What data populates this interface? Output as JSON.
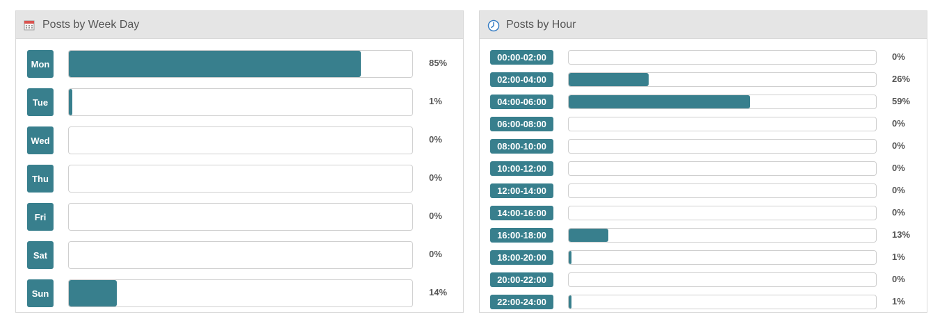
{
  "week_panel": {
    "title": "Posts by Week Day",
    "icon": "calendar-icon",
    "items": [
      {
        "label": "Mon",
        "value": 85,
        "text": "85%"
      },
      {
        "label": "Tue",
        "value": 1,
        "text": "1%"
      },
      {
        "label": "Wed",
        "value": 0,
        "text": "0%"
      },
      {
        "label": "Thu",
        "value": 0,
        "text": "0%"
      },
      {
        "label": "Fri",
        "value": 0,
        "text": "0%"
      },
      {
        "label": "Sat",
        "value": 0,
        "text": "0%"
      },
      {
        "label": "Sun",
        "value": 14,
        "text": "14%"
      }
    ]
  },
  "hour_panel": {
    "title": "Posts by Hour",
    "icon": "clock-icon",
    "items": [
      {
        "label": "00:00-02:00",
        "value": 0,
        "text": "0%"
      },
      {
        "label": "02:00-04:00",
        "value": 26,
        "text": "26%"
      },
      {
        "label": "04:00-06:00",
        "value": 59,
        "text": "59%"
      },
      {
        "label": "06:00-08:00",
        "value": 0,
        "text": "0%"
      },
      {
        "label": "08:00-10:00",
        "value": 0,
        "text": "0%"
      },
      {
        "label": "10:00-12:00",
        "value": 0,
        "text": "0%"
      },
      {
        "label": "12:00-14:00",
        "value": 0,
        "text": "0%"
      },
      {
        "label": "14:00-16:00",
        "value": 0,
        "text": "0%"
      },
      {
        "label": "16:00-18:00",
        "value": 13,
        "text": "13%"
      },
      {
        "label": "18:00-20:00",
        "value": 1,
        "text": "1%"
      },
      {
        "label": "20:00-22:00",
        "value": 0,
        "text": "0%"
      },
      {
        "label": "22:00-24:00",
        "value": 1,
        "text": "1%"
      }
    ]
  },
  "colors": {
    "accent": "#387f8d",
    "header_bg": "#e5e5e5"
  }
}
